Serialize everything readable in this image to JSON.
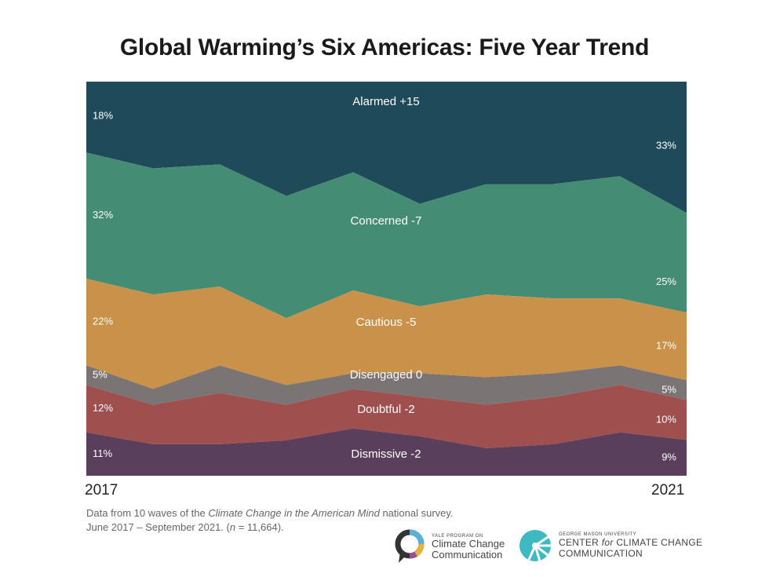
{
  "chart_data": {
    "type": "area",
    "stacked": true,
    "normalized_percent": true,
    "title": "Global Warming’s Six Americas: Five Year Trend",
    "x": [
      1,
      2,
      3,
      4,
      5,
      6,
      7,
      8,
      9,
      10
    ],
    "x_tick_labels": [
      "2017",
      "2021"
    ],
    "ylim": [
      0,
      100
    ],
    "grid": false,
    "series": [
      {
        "name": "Alarmed",
        "change_label": "Alarmed +15",
        "color": "#1f4a5a",
        "values": [
          18,
          22,
          21,
          29,
          23,
          31,
          26,
          26,
          24,
          33
        ],
        "start_label": "18%",
        "end_label": "33%"
      },
      {
        "name": "Concerned",
        "change_label": "Concerned -7",
        "color": "#448c74",
        "values": [
          32,
          32,
          31,
          31,
          30,
          26,
          28,
          29,
          31,
          25
        ],
        "start_label": "32%",
        "end_label": "25%"
      },
      {
        "name": "Cautious",
        "change_label": "Cautious -5",
        "color": "#c9914a",
        "values": [
          22,
          24,
          20,
          17,
          21,
          17,
          21,
          19,
          17,
          17
        ],
        "start_label": "22%",
        "end_label": "17%"
      },
      {
        "name": "Disengaged",
        "change_label": "Disengaged  0",
        "color": "#7a7474",
        "values": [
          5,
          4,
          7,
          5,
          4,
          6,
          7,
          6,
          5,
          5
        ],
        "start_label": "5%",
        "end_label": "5%"
      },
      {
        "name": "Doubtful",
        "change_label": "Doubtful -2",
        "color": "#a04f4f",
        "values": [
          12,
          10,
          13,
          9,
          10,
          10,
          11,
          12,
          12,
          10
        ],
        "start_label": "12%",
        "end_label": "10%"
      },
      {
        "name": "Dismissive",
        "change_label": "Dismissive -2",
        "color": "#5a3f5c",
        "values": [
          11,
          8,
          8,
          9,
          12,
          10,
          7,
          8,
          11,
          9
        ],
        "start_label": "11%",
        "end_label": "9%"
      }
    ]
  },
  "footnote": {
    "line1_pre": "Data from 10 waves of the ",
    "line1_italic": "Climate Change in the American Mind",
    "line1_post": " national survey.",
    "line2_pre": "June 2017 – September 2021. (",
    "line2_italic": "n",
    "line2_post": " = 11,664)."
  },
  "logos": {
    "yale_small": "YALE PROGRAM ON",
    "yale_line1": "Climate Change",
    "yale_line2": "Communication",
    "gmu_small": "GEORGE MASON UNIVERSITY",
    "gmu_line1_pre": "CENTER ",
    "gmu_line1_italic": "for",
    "gmu_line1_post": " CLIMATE CHANGE",
    "gmu_line2": "COMMUNICATION"
  }
}
